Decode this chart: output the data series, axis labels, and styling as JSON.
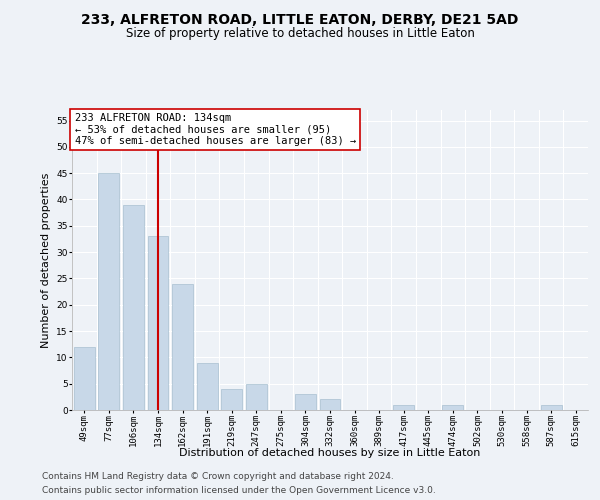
{
  "title": "233, ALFRETON ROAD, LITTLE EATON, DERBY, DE21 5AD",
  "subtitle": "Size of property relative to detached houses in Little Eaton",
  "xlabel": "Distribution of detached houses by size in Little Eaton",
  "ylabel": "Number of detached properties",
  "categories": [
    "49sqm",
    "77sqm",
    "106sqm",
    "134sqm",
    "162sqm",
    "191sqm",
    "219sqm",
    "247sqm",
    "275sqm",
    "304sqm",
    "332sqm",
    "360sqm",
    "389sqm",
    "417sqm",
    "445sqm",
    "474sqm",
    "502sqm",
    "530sqm",
    "558sqm",
    "587sqm",
    "615sqm"
  ],
  "values": [
    12,
    45,
    39,
    33,
    24,
    9,
    4,
    5,
    0,
    3,
    2,
    0,
    0,
    1,
    0,
    1,
    0,
    0,
    0,
    1,
    0
  ],
  "bar_color": "#c8d8e8",
  "bar_edge_color": "#a8c0d0",
  "vline_x_index": 3,
  "vline_color": "#cc0000",
  "annotation_text": "233 ALFRETON ROAD: 134sqm\n← 53% of detached houses are smaller (95)\n47% of semi-detached houses are larger (83) →",
  "annotation_box_color": "#ffffff",
  "annotation_box_edge_color": "#cc0000",
  "ylim": [
    0,
    57
  ],
  "yticks": [
    0,
    5,
    10,
    15,
    20,
    25,
    30,
    35,
    40,
    45,
    50,
    55
  ],
  "footer1": "Contains HM Land Registry data © Crown copyright and database right 2024.",
  "footer2": "Contains public sector information licensed under the Open Government Licence v3.0.",
  "bg_color": "#eef2f7",
  "grid_color": "#ffffff",
  "title_fontsize": 10,
  "subtitle_fontsize": 8.5,
  "tick_fontsize": 6.5,
  "ylabel_fontsize": 8,
  "xlabel_fontsize": 8,
  "footer_fontsize": 6.5,
  "annotation_fontsize": 7.5
}
